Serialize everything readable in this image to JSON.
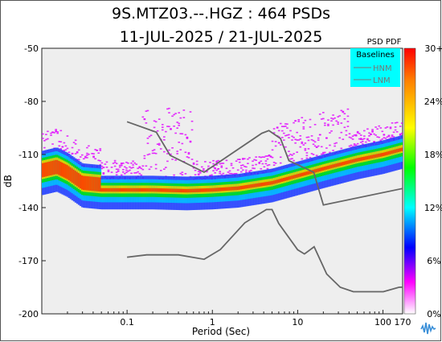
{
  "chart_data": {
    "type": "heatmap",
    "title": "9S.MTZ03.--.HGZ : 464 PSDs",
    "subtitle": "11-JUL-2025 / 21-JUL-2025",
    "xlabel": "Period (Sec)",
    "ylabel": "dB",
    "x_scale": "log",
    "xlim": [
      0.01,
      170
    ],
    "ylim": [
      -200,
      -50
    ],
    "x_ticks": [
      "0.1",
      "1",
      "10",
      "100",
      "170"
    ],
    "x_tick_values": [
      0.1,
      1,
      10,
      100,
      170
    ],
    "y_ticks": [
      "-50",
      "-80",
      "-110",
      "-140",
      "-170",
      "-200"
    ],
    "y_tick_values": [
      -50,
      -80,
      -110,
      -140,
      -170,
      -200
    ],
    "grid": false,
    "colorbar": {
      "title": "PSD PDF",
      "ticks": [
        "30+",
        "24%",
        "18%",
        "12%",
        "6%",
        "0%"
      ],
      "colors": [
        "#ff0000",
        "#ff7f00",
        "#ffff00",
        "#00ff00",
        "#00ffff",
        "#0000ff",
        "#ff00ff",
        "#ffffff"
      ]
    },
    "legend": {
      "title": "Baselines",
      "entries": [
        "HNM",
        "LNM"
      ],
      "position": "top-right",
      "background": "#00ffff"
    },
    "baselines": {
      "HNM": {
        "x": [
          0.1,
          0.22,
          0.32,
          0.8,
          3.8,
          4.6,
          6.3,
          7.9,
          15.4,
          20,
          354.8
        ],
        "y": [
          -91.5,
          -97.4,
          -110.5,
          -120,
          -98,
          -96.5,
          -101,
          -113.5,
          -120,
          -138.5,
          -126
        ]
      },
      "LNM": {
        "x": [
          0.1,
          0.17,
          0.4,
          0.8,
          1.24,
          2.4,
          4.3,
          5,
          6,
          10,
          12,
          15.6,
          21.9,
          31.6,
          45,
          70,
          101,
          154,
          328,
          600
        ],
        "y": [
          -168,
          -166.7,
          -166.7,
          -169.2,
          -163.7,
          -148.6,
          -141.1,
          -141.1,
          -149,
          -163.8,
          -166.2,
          -162.1,
          -177.5,
          -185,
          -187.5,
          -187.5,
          -187.5,
          -185,
          -184.4,
          -187.5
        ]
      }
    },
    "mode_curve": {
      "x": [
        0.01,
        0.015,
        0.02,
        0.03,
        0.05,
        0.1,
        0.2,
        0.5,
        1,
        2,
        5,
        10,
        20,
        50,
        100,
        170
      ],
      "y": [
        -122,
        -120,
        -123,
        -129,
        -130,
        -130,
        -130,
        -130.5,
        -130,
        -129,
        -126,
        -122,
        -118,
        -113,
        -110,
        -107
      ]
    }
  }
}
